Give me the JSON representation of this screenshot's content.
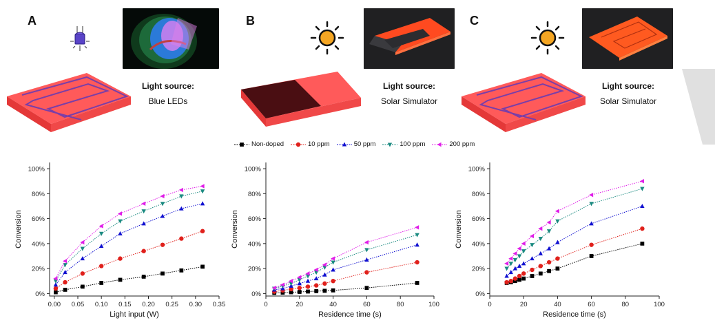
{
  "panels": [
    {
      "letter": "A",
      "light_source_title": "Light source:",
      "light_source_value": "Blue LEDs",
      "icon": "blue-led-icon"
    },
    {
      "letter": "B",
      "light_source_title": "Light source:",
      "light_source_value": "Solar Simulator",
      "icon": "sun-icon"
    },
    {
      "letter": "C",
      "light_source_title": "Light source:",
      "light_source_value": "Solar Simulator",
      "icon": "sun-icon"
    }
  ],
  "colors": {
    "reactor_top": "#ff4f4f",
    "reactor_side": "#f23d3d",
    "channel": "#7a3ea8",
    "sun": "#f5a623",
    "led": "#4040c0"
  },
  "legend": [
    {
      "name": "Non-doped",
      "color": "#000000",
      "marker": "square"
    },
    {
      "name": "10 ppm",
      "color": "#e0201b",
      "marker": "circle"
    },
    {
      "name": "50 ppm",
      "color": "#1010d0",
      "marker": "triangle-up"
    },
    {
      "name": "100 ppm",
      "color": "#1a8a80",
      "marker": "triangle-down"
    },
    {
      "name": "200 ppm",
      "color": "#e01ee8",
      "marker": "triangle-left"
    }
  ],
  "chart_data": [
    {
      "type": "line",
      "xlabel": "Light input (W)",
      "ylabel": "Conversion",
      "xlim": [
        -0.01,
        0.35
      ],
      "ylim": [
        -0.02,
        1.05
      ],
      "xticks": [
        "0.00",
        "0.05",
        "0.10",
        "0.15",
        "0.20",
        "0.25",
        "0.30",
        "0.35"
      ],
      "yticks": [
        "0%",
        "20%",
        "40%",
        "60%",
        "80%",
        "100%"
      ],
      "x": [
        0.003,
        0.023,
        0.06,
        0.1,
        0.14,
        0.19,
        0.23,
        0.27,
        0.315
      ],
      "series": [
        {
          "name": "Non-doped",
          "values": [
            0.01,
            0.03,
            0.055,
            0.085,
            0.11,
            0.135,
            0.16,
            0.185,
            0.215
          ]
        },
        {
          "name": "10 ppm",
          "values": [
            0.04,
            0.09,
            0.16,
            0.22,
            0.28,
            0.34,
            0.39,
            0.44,
            0.5
          ]
        },
        {
          "name": "50 ppm",
          "values": [
            0.07,
            0.17,
            0.28,
            0.38,
            0.48,
            0.56,
            0.62,
            0.68,
            0.72
          ]
        },
        {
          "name": "100 ppm",
          "values": [
            0.1,
            0.23,
            0.36,
            0.48,
            0.58,
            0.66,
            0.72,
            0.78,
            0.82
          ]
        },
        {
          "name": "200 ppm",
          "values": [
            0.12,
            0.26,
            0.41,
            0.54,
            0.64,
            0.72,
            0.78,
            0.83,
            0.86
          ]
        }
      ]
    },
    {
      "type": "line",
      "xlabel": "Residence time (s)",
      "ylabel": "Conversion",
      "xlim": [
        0,
        100
      ],
      "ylim": [
        -0.02,
        1.05
      ],
      "xticks": [
        "0",
        "20",
        "40",
        "60",
        "80",
        "100"
      ],
      "yticks": [
        "0%",
        "20%",
        "40%",
        "60%",
        "80%",
        "100%"
      ],
      "x": [
        5,
        10,
        15,
        20,
        25,
        30,
        35,
        40,
        60,
        90
      ],
      "series": [
        {
          "name": "Non-doped",
          "values": [
            0.005,
            0.007,
            0.01,
            0.013,
            0.016,
            0.019,
            0.022,
            0.025,
            0.045,
            0.085
          ]
        },
        {
          "name": "10 ppm",
          "values": [
            0.015,
            0.025,
            0.035,
            0.045,
            0.055,
            0.065,
            0.08,
            0.1,
            0.17,
            0.25
          ]
        },
        {
          "name": "50 ppm",
          "values": [
            0.03,
            0.04,
            0.06,
            0.08,
            0.1,
            0.12,
            0.15,
            0.19,
            0.27,
            0.39
          ]
        },
        {
          "name": "100 ppm",
          "values": [
            0.04,
            0.06,
            0.08,
            0.11,
            0.14,
            0.17,
            0.21,
            0.25,
            0.35,
            0.47
          ]
        },
        {
          "name": "200 ppm",
          "values": [
            0.045,
            0.07,
            0.1,
            0.13,
            0.16,
            0.19,
            0.23,
            0.28,
            0.41,
            0.53
          ]
        }
      ]
    },
    {
      "type": "line",
      "xlabel": "Residence time (s)",
      "ylabel": "Conversion",
      "xlim": [
        0,
        100
      ],
      "ylim": [
        -0.02,
        1.05
      ],
      "xticks": [
        "0",
        "20",
        "40",
        "60",
        "80",
        "100"
      ],
      "yticks": [
        "0%",
        "20%",
        "40%",
        "60%",
        "80%",
        "100%"
      ],
      "x": [
        10,
        12.5,
        15,
        17.5,
        20,
        25,
        30,
        35,
        40,
        60,
        90
      ],
      "series": [
        {
          "name": "Non-doped",
          "values": [
            0.085,
            0.09,
            0.1,
            0.11,
            0.12,
            0.14,
            0.16,
            0.18,
            0.2,
            0.3,
            0.4
          ]
        },
        {
          "name": "10 ppm",
          "values": [
            0.09,
            0.1,
            0.12,
            0.14,
            0.16,
            0.19,
            0.22,
            0.25,
            0.28,
            0.39,
            0.52
          ]
        },
        {
          "name": "50 ppm",
          "values": [
            0.14,
            0.17,
            0.2,
            0.22,
            0.24,
            0.28,
            0.32,
            0.36,
            0.41,
            0.56,
            0.7
          ]
        },
        {
          "name": "100 ppm",
          "values": [
            0.2,
            0.24,
            0.27,
            0.3,
            0.34,
            0.39,
            0.44,
            0.5,
            0.58,
            0.72,
            0.84
          ]
        },
        {
          "name": "200 ppm",
          "values": [
            0.24,
            0.28,
            0.32,
            0.36,
            0.4,
            0.46,
            0.52,
            0.57,
            0.66,
            0.79,
            0.9
          ]
        }
      ]
    }
  ]
}
